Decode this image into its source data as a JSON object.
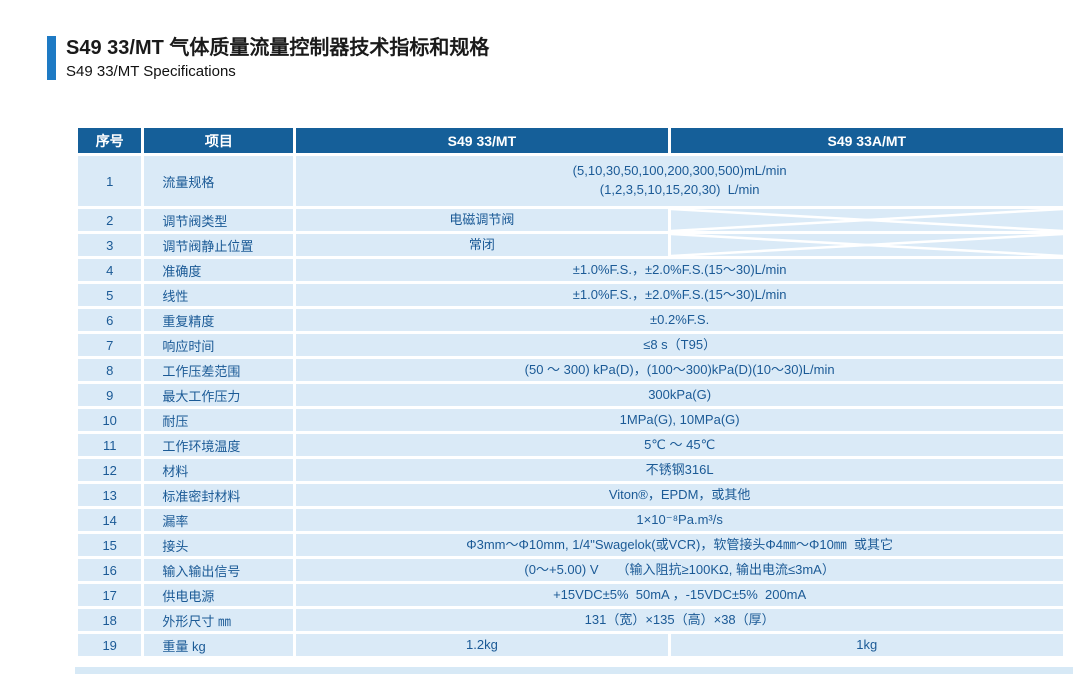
{
  "page": {
    "title_zh": "S49 33/MT 气体质量流量控制器技术指标和规格",
    "title_en": "S49 33/MT  Specifications"
  },
  "colors": {
    "accent": "#1e7ac4",
    "header_bg": "#155f99",
    "cell_bg": "#daeaf7",
    "text_blue": "#1b5a96",
    "strip": "#d7e9f6"
  },
  "table": {
    "header": {
      "col_no": "序号",
      "col_item": "项目",
      "col_model1": "S49 33/MT",
      "col_model2": "S49 33A/MT"
    },
    "rows": [
      {
        "no": "1",
        "item": "流量规格",
        "span": "both",
        "tall": true,
        "value": "(5,10,30,50,100,200,300,500)mL/min\n(1,2,3,5,10,15,20,30)  L/min"
      },
      {
        "no": "2",
        "item": "调节阀类型",
        "span": "first",
        "value": "电磁调节阀"
      },
      {
        "no": "3",
        "item": "调节阀静止位置",
        "span": "first",
        "value": "常闭"
      },
      {
        "no": "4",
        "item": "准确度",
        "span": "both",
        "value": "±1.0%F.S.，±2.0%F.S.(15～30)L/min"
      },
      {
        "no": "5",
        "item": "线性",
        "span": "both",
        "value": "±1.0%F.S.，±2.0%F.S.(15～30)L/min"
      },
      {
        "no": "6",
        "item": "重复精度",
        "span": "both",
        "value": "±0.2%F.S."
      },
      {
        "no": "7",
        "item": "响应时间",
        "span": "both",
        "value": "≤8 s（T95）"
      },
      {
        "no": "8",
        "item": "工作压差范围",
        "span": "both",
        "value": "(50 ～ 300) kPa(D)，(100～300)kPa(D)(10～30)L/min"
      },
      {
        "no": "9",
        "item": "最大工作压力",
        "span": "both",
        "value": "300kPa(G)"
      },
      {
        "no": "10",
        "item": "耐压",
        "span": "both",
        "value": "1MPa(G), 10MPa(G)"
      },
      {
        "no": "11",
        "item": "工作环境温度",
        "span": "both",
        "value": "5℃ ～ 45℃"
      },
      {
        "no": "12",
        "item": "材料",
        "span": "both",
        "value": "不锈钢316L"
      },
      {
        "no": "13",
        "item": "标准密封材料",
        "span": "both",
        "value": "Viton®，EPDM，或其他"
      },
      {
        "no": "14",
        "item": "漏率",
        "span": "both",
        "value": "1×10⁻⁸Pa.m³/s"
      },
      {
        "no": "15",
        "item": "接头",
        "span": "both",
        "value": "Φ3mm～Φ10mm, 1/4\"Swagelok(或VCR)，软管接头Φ4㎜～Φ10㎜  或其它"
      },
      {
        "no": "16",
        "item": "输入输出信号",
        "span": "both",
        "value": "(0～+5.00) V     （输入阻抗≥100KΩ, 输出电流≤3mA）"
      },
      {
        "no": "17",
        "item": "供电电源",
        "span": "both",
        "value": "+15VDC±5%  50mA ，-15VDC±5%  200mA"
      },
      {
        "no": "18",
        "item": "外形尺寸 ㎜",
        "span": "both",
        "value": "131（宽）×135（高）×38（厚）"
      },
      {
        "no": "19",
        "item": "重量 kg",
        "span": "split",
        "value1": "1.2kg",
        "value2": "1kg"
      }
    ]
  }
}
